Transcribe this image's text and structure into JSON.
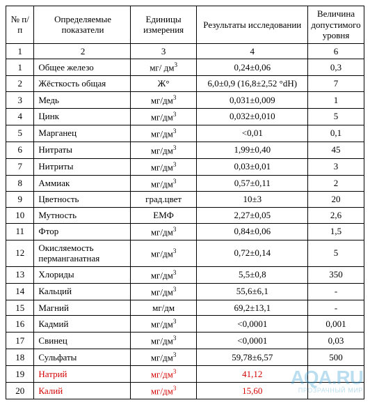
{
  "table": {
    "headers": {
      "num": "№ п/п",
      "param": "Определяемые показатели",
      "unit": "Единицы измерения",
      "result": "Результаты исследовании",
      "limit": "Величина допустимого уровня"
    },
    "numrow": {
      "c1": "1",
      "c2": "2",
      "c3": "3",
      "c4": "4",
      "c5": "6"
    },
    "rows": [
      {
        "n": "1",
        "param": "Общее железо",
        "unit": "мг/ дм",
        "sup": "3",
        "result": "0,24±0,06",
        "limit": "0,3",
        "red": false
      },
      {
        "n": "2",
        "param": "Жёсткость общая",
        "unit": "Ж°",
        "sup": "",
        "result": "6,0±0,9 (16,8±2,52 °dH)",
        "limit": "7",
        "red": false
      },
      {
        "n": "3",
        "param": "Медь",
        "unit": "мг/дм",
        "sup": "3",
        "result": "0,031±0,009",
        "limit": "1",
        "red": false
      },
      {
        "n": "4",
        "param": "Цинк",
        "unit": "мг/дм",
        "sup": "3",
        "result": "0,032±0,010",
        "limit": "5",
        "red": false
      },
      {
        "n": "5",
        "param": "Марганец",
        "unit": "мг/дм",
        "sup": "3",
        "result": "<0,01",
        "limit": "0,1",
        "red": false
      },
      {
        "n": "6",
        "param": "Нитраты",
        "unit": "мг/дм",
        "sup": "3",
        "result": "1,99±0,40",
        "limit": "45",
        "red": false
      },
      {
        "n": "7",
        "param": "Нитриты",
        "unit": "мг/дм",
        "sup": "3",
        "result": "0,03±0,01",
        "limit": "3",
        "red": false
      },
      {
        "n": "8",
        "param": "Аммиак",
        "unit": "мг/дм",
        "sup": "3",
        "result": "0,57±0,11",
        "limit": "2",
        "red": false
      },
      {
        "n": "9",
        "param": "Цветность",
        "unit": "град.цвет",
        "sup": "",
        "result": "10±3",
        "limit": "20",
        "red": false
      },
      {
        "n": "10",
        "param": "Мутность",
        "unit": "ЕМФ",
        "sup": "",
        "result": "2,27±0,05",
        "limit": "2,6",
        "red": false
      },
      {
        "n": "11",
        "param": "Фтор",
        "unit": "мг/дм",
        "sup": "3",
        "result": "0,84±0,06",
        "limit": "1,5",
        "red": false
      },
      {
        "n": "12",
        "param": "Окисляемость перманганатная",
        "unit": "мг/дм",
        "sup": "3",
        "result": "0,72±0,14",
        "limit": "5",
        "red": false
      },
      {
        "n": "13",
        "param": "Хлориды",
        "unit": "мг/дм",
        "sup": "3",
        "result": "5,5±0,8",
        "limit": "350",
        "red": false
      },
      {
        "n": "14",
        "param": "Кальций",
        "unit": "мг/дм",
        "sup": "3",
        "result": "55,6±6,1",
        "limit": "-",
        "red": false
      },
      {
        "n": "15",
        "param": "Магний",
        "unit": "мг/дм",
        "sup": "",
        "result": "69,2±13,1",
        "limit": "-",
        "red": false
      },
      {
        "n": "16",
        "param": "Кадмий",
        "unit": "мг/дм",
        "sup": "3",
        "result": "<0,0001",
        "limit": "0,001",
        "red": false
      },
      {
        "n": "17",
        "param": "Свинец",
        "unit": "мг/дм",
        "sup": "3",
        "result": "<0,0001",
        "limit": "0,03",
        "red": false
      },
      {
        "n": "18",
        "param": "Сульфаты",
        "unit": "мг/дм",
        "sup": "3",
        "result": "59,78±6,57",
        "limit": "500",
        "red": false
      },
      {
        "n": "19",
        "param": "Натрий",
        "unit": "мг/дм",
        "sup": "3",
        "result": "41,12",
        "limit": "",
        "red": true
      },
      {
        "n": "20",
        "param": "Калий",
        "unit": "мг/дм",
        "sup": "3",
        "result": "15,60",
        "limit": "",
        "red": true
      }
    ]
  },
  "watermark": {
    "main": "AQA.RU",
    "sub": "ПРОЗРАЧНЫЙ МИР"
  },
  "colors": {
    "red": "#d40000",
    "border": "#000000",
    "bg": "#ffffff"
  }
}
